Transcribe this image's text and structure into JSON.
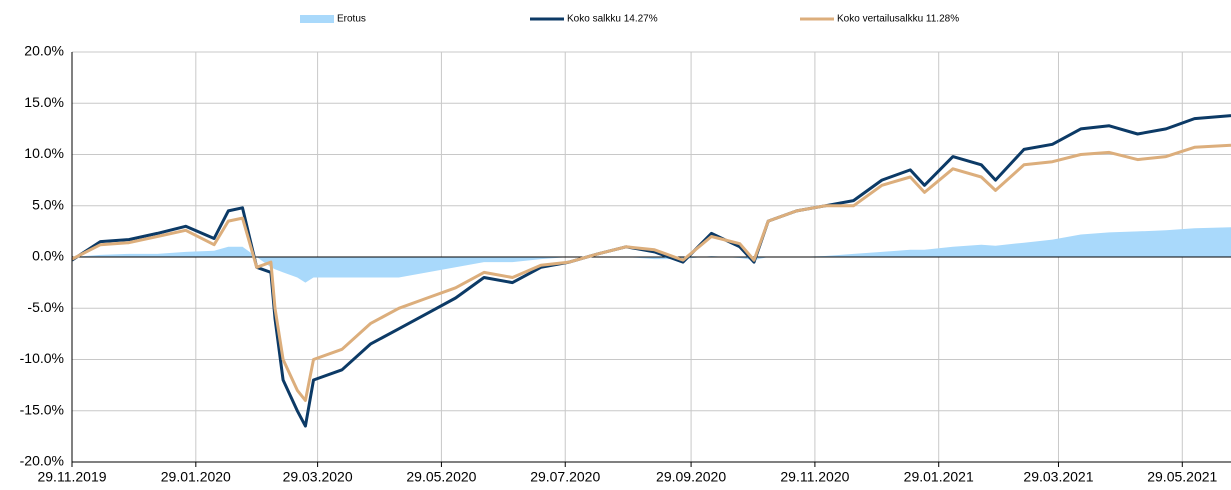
{
  "chart_data": {
    "type": "line",
    "x": [
      "29.11.2019",
      "13.12.2019",
      "27.12.2019",
      "10.01.2020",
      "24.01.2020",
      "07.02.2020",
      "14.02.2020",
      "21.02.2020",
      "28.02.2020",
      "06.03.2020",
      "08.03.2020",
      "12.03.2020",
      "19.03.2020",
      "23.03.2020",
      "27.03.2020",
      "10.04.2020",
      "24.04.2020",
      "08.05.2020",
      "22.05.2020",
      "05.06.2020",
      "19.06.2020",
      "03.07.2020",
      "17.07.2020",
      "31.07.2020",
      "14.08.2020",
      "28.08.2020",
      "11.09.2020",
      "25.09.2020",
      "09.10.2020",
      "23.10.2020",
      "30.10.2020",
      "06.11.2020",
      "20.11.2020",
      "04.12.2020",
      "18.12.2020",
      "01.01.2021",
      "15.01.2021",
      "22.01.2021",
      "05.02.2021",
      "19.02.2021",
      "26.02.2021",
      "12.03.2021",
      "26.03.2021",
      "09.04.2021",
      "23.04.2021",
      "07.05.2021",
      "21.05.2021",
      "04.06.2021",
      "22.06.2021"
    ],
    "series": [
      {
        "name": "Erotus",
        "color": "#a9d9fb",
        "kind": "area",
        "values": [
          0,
          0.2,
          0.3,
          0.3,
          0.5,
          0.6,
          1.0,
          1.0,
          0,
          -1,
          -1.2,
          -1.5,
          -2,
          -2.5,
          -2,
          -2,
          -2,
          -2,
          -1.5,
          -1,
          -0.5,
          -0.5,
          -0.2,
          0,
          0,
          0,
          -0.2,
          -0.2,
          0.1,
          -0.1,
          -0.3,
          0,
          0,
          0.1,
          0.3,
          0.5,
          0.7,
          0.7,
          1.0,
          1.2,
          1.1,
          1.4,
          1.7,
          2.2,
          2.4,
          2.5,
          2.6,
          2.8,
          2.9
        ]
      },
      {
        "name": "Koko salkku 14.27%",
        "color": "#0c3a66",
        "kind": "line",
        "values": [
          -0.3,
          1.5,
          1.7,
          2.3,
          3.0,
          1.8,
          4.5,
          4.8,
          -1.0,
          -1.5,
          -6,
          -12,
          -15,
          -16.5,
          -12,
          -11,
          -8.5,
          -7,
          -5.5,
          -4,
          -2,
          -2.5,
          -1,
          -0.5,
          0.3,
          1.0,
          0.5,
          -0.5,
          2.3,
          1.0,
          -0.5,
          3.5,
          4.5,
          5.0,
          5.5,
          7.5,
          8.5,
          7.0,
          9.8,
          9.0,
          7.5,
          10.5,
          11.0,
          12.5,
          12.8,
          12.0,
          12.5,
          13.5,
          13.8
        ]
      },
      {
        "name": "Koko vertailusalkku 11.28%",
        "color": "#dcae7c",
        "kind": "line",
        "values": [
          -0.2,
          1.2,
          1.4,
          2.0,
          2.6,
          1.2,
          3.5,
          3.8,
          -1.0,
          -0.5,
          -5,
          -10,
          -13,
          -14,
          -10,
          -9,
          -6.5,
          -5,
          -4,
          -3,
          -1.5,
          -2,
          -0.8,
          -0.5,
          0.3,
          1.0,
          0.7,
          -0.3,
          2.0,
          1.3,
          -0.3,
          3.5,
          4.5,
          5.0,
          5.0,
          7.0,
          7.8,
          6.3,
          8.6,
          7.8,
          6.5,
          9.0,
          9.3,
          10.0,
          10.2,
          9.5,
          9.8,
          10.7,
          10.9
        ]
      }
    ],
    "xlim": [
      "29.11.2019",
      "22.06.2021"
    ],
    "xticks": [
      "29.11.2019",
      "29.01.2020",
      "29.03.2020",
      "29.05.2020",
      "29.07.2020",
      "29.09.2020",
      "29.11.2020",
      "29.01.2021",
      "29.03.2021",
      "29.05.2021"
    ],
    "ylim": [
      -20,
      20
    ],
    "yticks": [
      {
        "value": -20,
        "label": "-20.0%"
      },
      {
        "value": -15,
        "label": "-15.0%"
      },
      {
        "value": -10,
        "label": "-10.0%"
      },
      {
        "value": -5,
        "label": "-5.0%"
      },
      {
        "value": 0,
        "label": "0.0%"
      },
      {
        "value": 5,
        "label": "5.0%"
      },
      {
        "value": 10,
        "label": "10.0%"
      },
      {
        "value": 15,
        "label": "15.0%"
      },
      {
        "value": 20,
        "label": "20.0%"
      }
    ],
    "grid": true,
    "legend": "top"
  }
}
